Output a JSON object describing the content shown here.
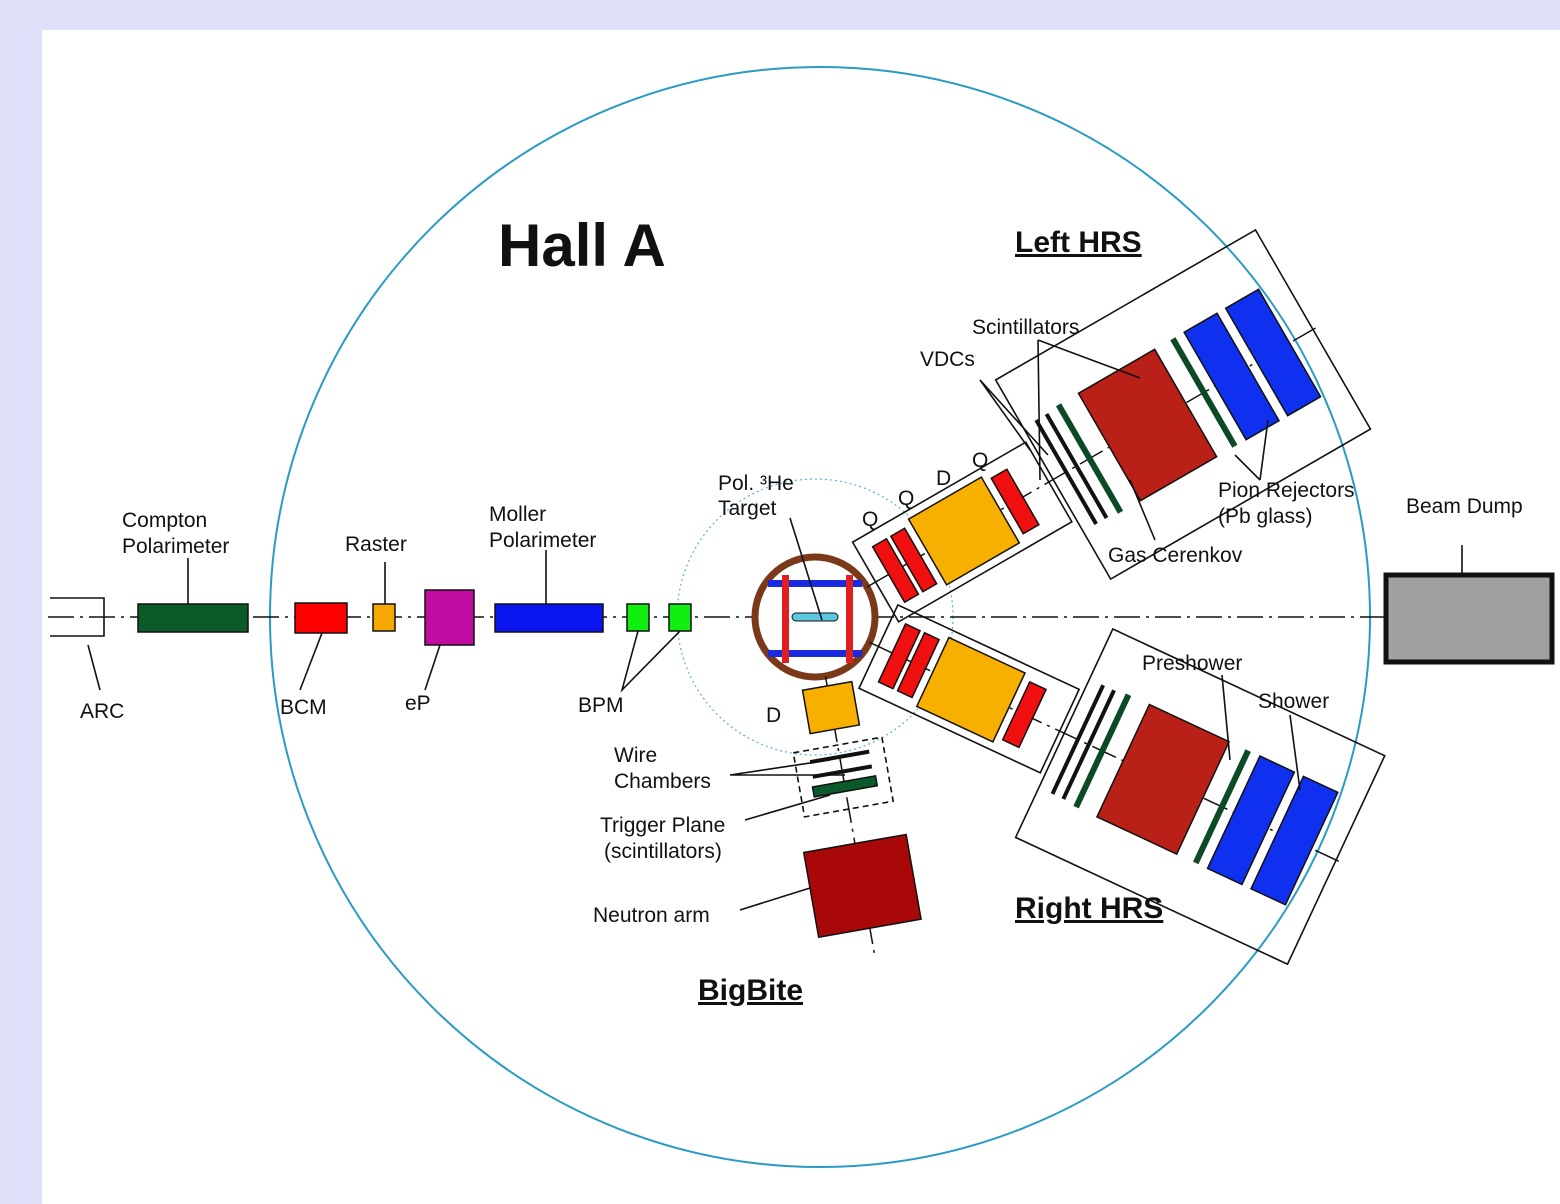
{
  "title": "Hall A",
  "spectrometers": {
    "left": "Left HRS",
    "right": "Right HRS",
    "bigbite": "BigBite"
  },
  "beamline": {
    "compton": [
      "Compton",
      "Polarimeter"
    ],
    "raster": "Raster",
    "moller": [
      "Moller",
      "Polarimeter"
    ],
    "target": [
      "Pol. ³He",
      "Target"
    ],
    "arc": "ARC",
    "bcm": "BCM",
    "ep": "eP",
    "bpm": "BPM",
    "beam_dump": "Beam Dump"
  },
  "left_hrs": {
    "scintillators": "Scintillators",
    "vdcs": "VDCs",
    "q1": "Q",
    "d": "D",
    "q2": "Q",
    "q3": "Q",
    "pion_rejectors": [
      "Pion Rejectors",
      "(Pb glass)"
    ],
    "gas_cerenkov": "Gas Cerenkov"
  },
  "right_hrs": {
    "preshower": "Preshower",
    "shower": "Shower"
  },
  "bigbite": {
    "d": "D",
    "wire_chambers": [
      "Wire",
      "Chambers"
    ],
    "trigger_plane": [
      "Trigger Plane",
      "(scintillators)"
    ],
    "neutron_arm": "Neutron arm"
  }
}
